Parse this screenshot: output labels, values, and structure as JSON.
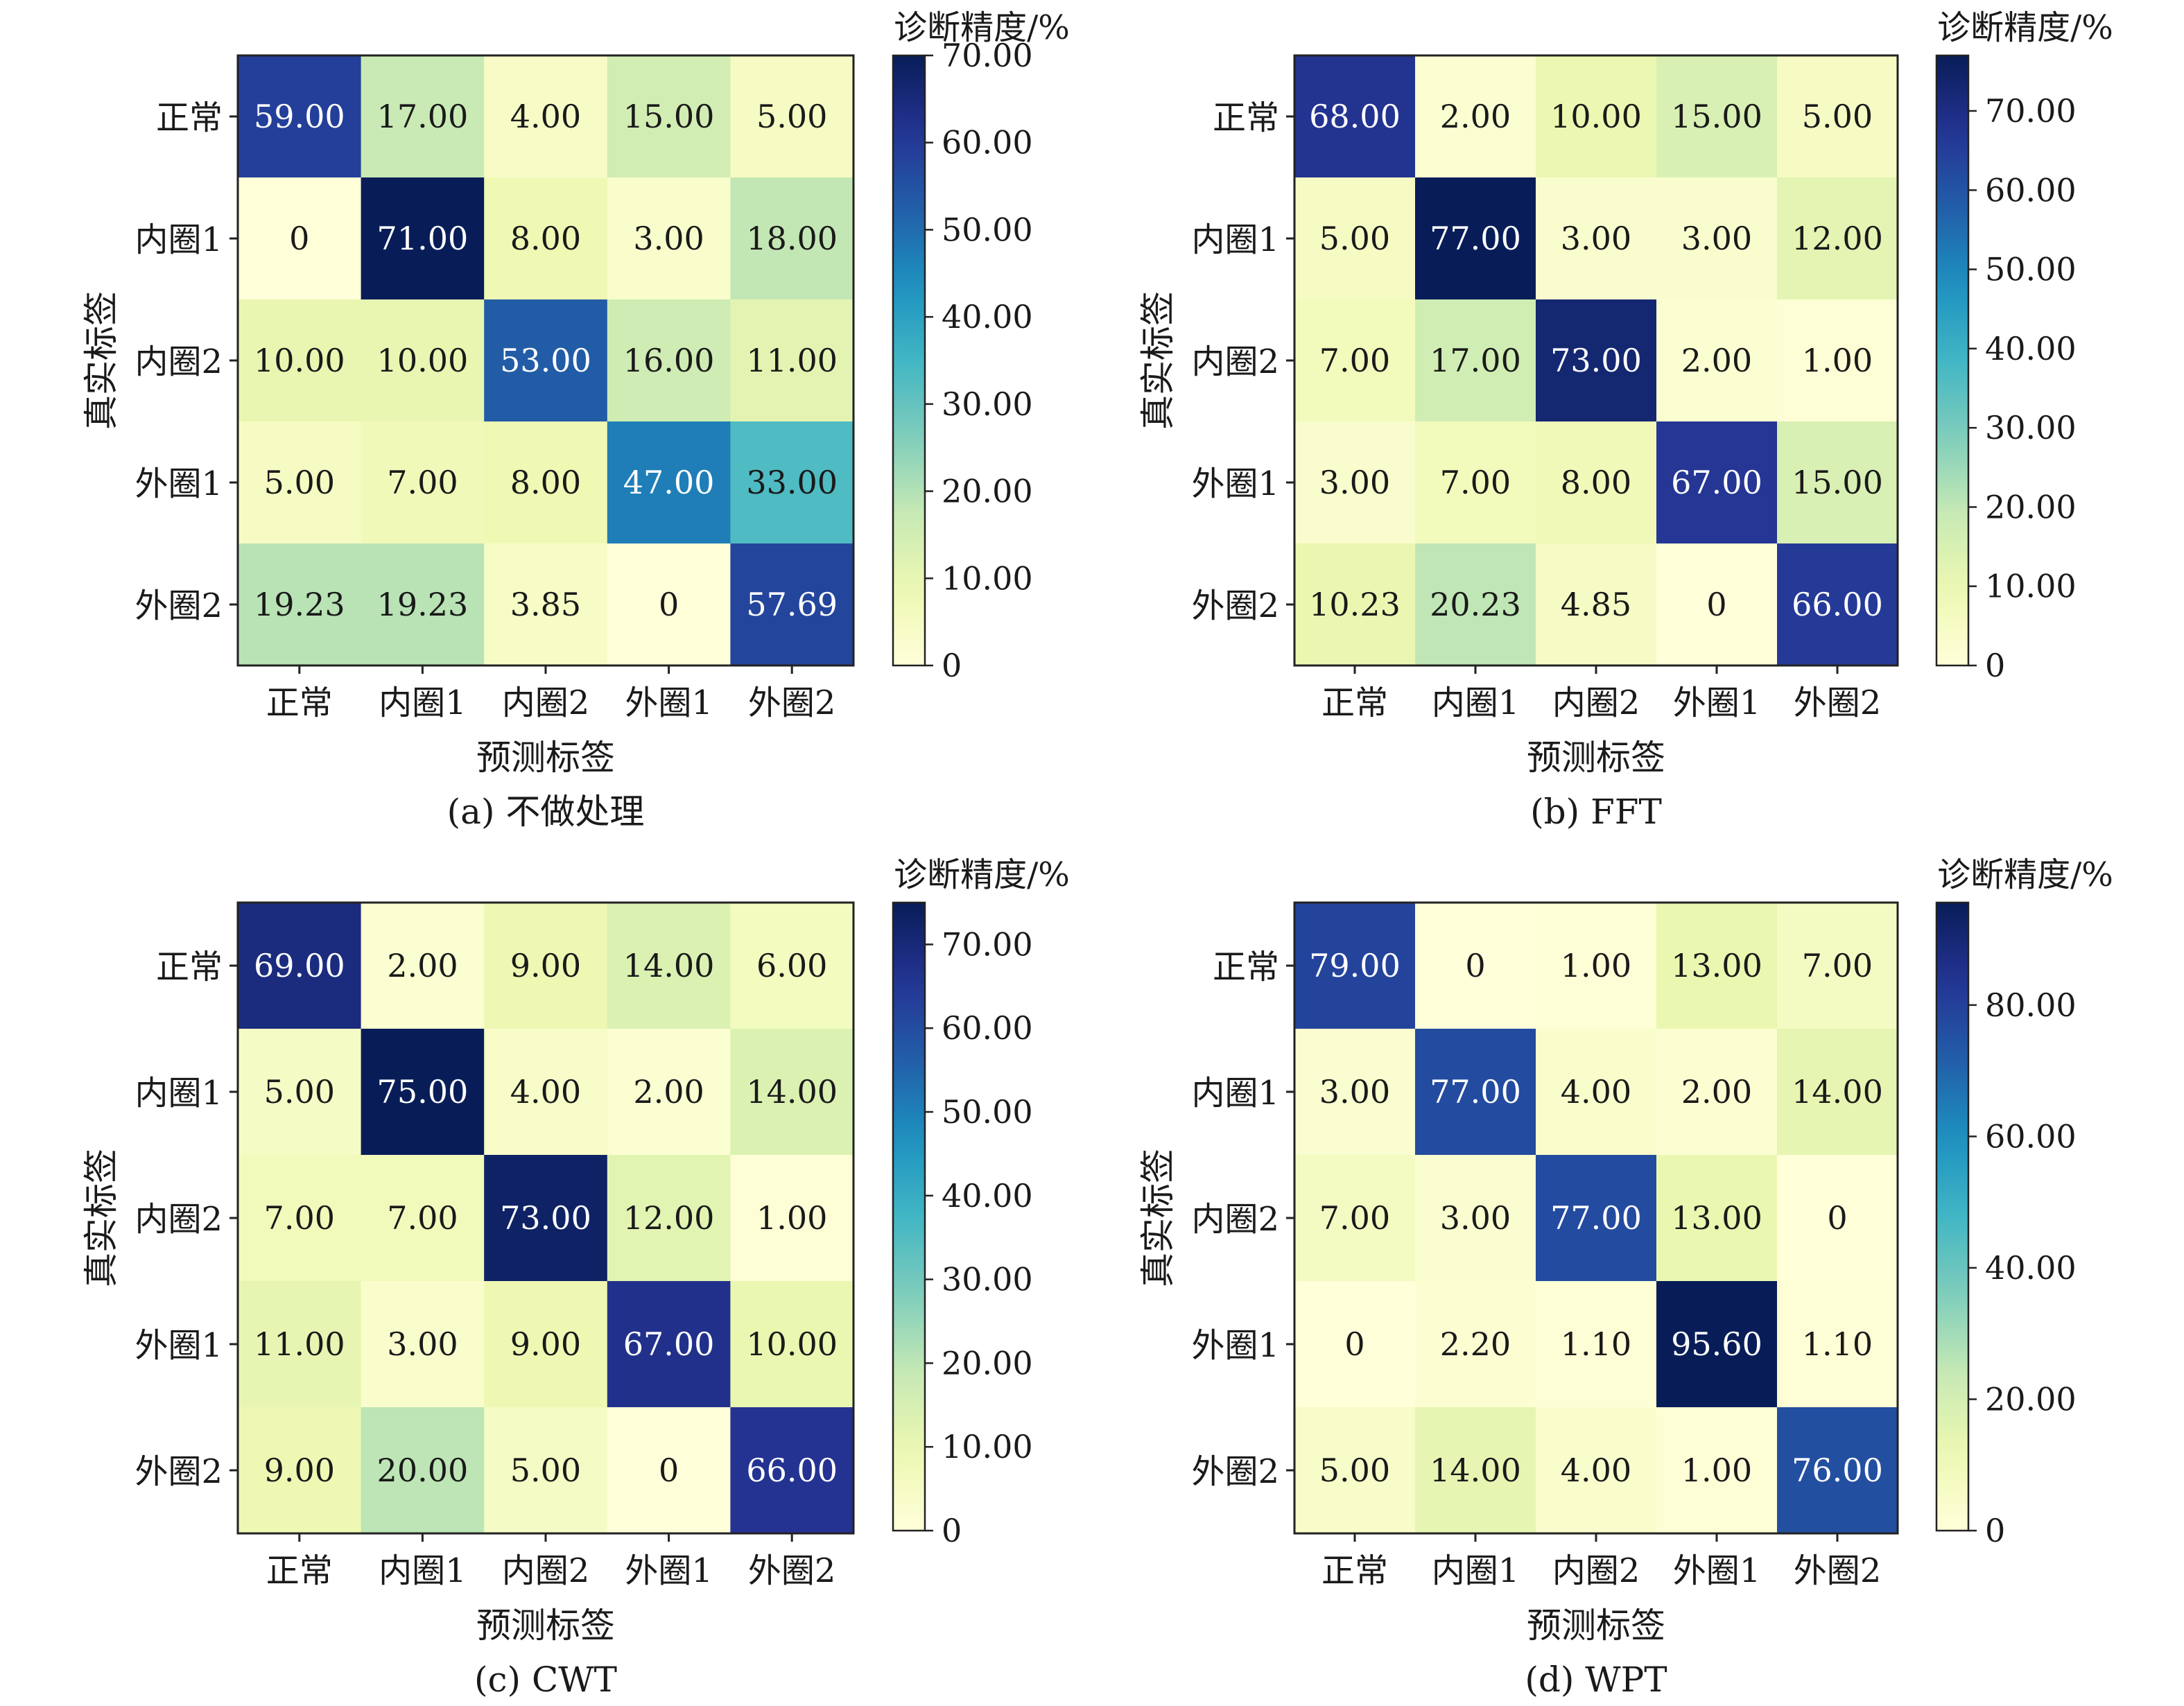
{
  "chart_data": [
    {
      "type": "heatmap",
      "title": "",
      "caption": "(a) 不做处理",
      "xlabel": "预测标签",
      "ylabel": "真实标签",
      "x_categories": [
        "正常",
        "内圈1",
        "内圈2",
        "外圈1",
        "外圈2"
      ],
      "y_categories": [
        "正常",
        "内圈1",
        "内圈2",
        "外圈1",
        "外圈2"
      ],
      "values": [
        [
          59.0,
          17.0,
          4.0,
          15.0,
          5.0
        ],
        [
          0,
          71.0,
          8.0,
          3.0,
          18.0
        ],
        [
          10.0,
          10.0,
          53.0,
          16.0,
          11.0
        ],
        [
          5.0,
          7.0,
          8.0,
          47.0,
          33.0
        ],
        [
          19.23,
          19.23,
          3.85,
          0,
          57.69
        ]
      ],
      "cell_labels": [
        [
          "59.00",
          "17.00",
          "4.00",
          "15.00",
          "5.00"
        ],
        [
          "0",
          "71.00",
          "8.00",
          "3.00",
          "18.00"
        ],
        [
          "10.00",
          "10.00",
          "53.00",
          "16.00",
          "11.00"
        ],
        [
          "5.00",
          "7.00",
          "8.00",
          "47.00",
          "33.00"
        ],
        [
          "19.23",
          "19.23",
          "3.85",
          "0",
          "57.69"
        ]
      ],
      "colorbar": {
        "label": "诊断精度/%",
        "vmin": 0,
        "vmax": 70,
        "ticks": [
          0,
          10,
          20,
          30,
          40,
          50,
          60,
          70
        ],
        "tick_labels": [
          "0",
          "10.00",
          "20.00",
          "30.00",
          "40.00",
          "50.00",
          "60.00",
          "70.00"
        ]
      },
      "colormap": "YlGnBu"
    },
    {
      "type": "heatmap",
      "title": "",
      "caption": "(b) FFT",
      "xlabel": "预测标签",
      "ylabel": "真实标签",
      "x_categories": [
        "正常",
        "内圈1",
        "内圈2",
        "外圈1",
        "外圈2"
      ],
      "y_categories": [
        "正常",
        "内圈1",
        "内圈2",
        "外圈1",
        "外圈2"
      ],
      "values": [
        [
          68.0,
          2.0,
          10.0,
          15.0,
          5.0
        ],
        [
          5.0,
          77.0,
          3.0,
          3.0,
          12.0
        ],
        [
          7.0,
          17.0,
          73.0,
          2.0,
          1.0
        ],
        [
          3.0,
          7.0,
          8.0,
          67.0,
          15.0
        ],
        [
          10.23,
          20.23,
          4.85,
          0,
          66.0
        ]
      ],
      "cell_labels": [
        [
          "68.00",
          "2.00",
          "10.00",
          "15.00",
          "5.00"
        ],
        [
          "5.00",
          "77.00",
          "3.00",
          "3.00",
          "12.00"
        ],
        [
          "7.00",
          "17.00",
          "73.00",
          "2.00",
          "1.00"
        ],
        [
          "3.00",
          "7.00",
          "8.00",
          "67.00",
          "15.00"
        ],
        [
          "10.23",
          "20.23",
          "4.85",
          "0",
          "66.00"
        ]
      ],
      "colorbar": {
        "label": "诊断精度/%",
        "vmin": 0,
        "vmax": 77,
        "ticks": [
          0,
          10,
          20,
          30,
          40,
          50,
          60,
          70
        ],
        "tick_labels": [
          "0",
          "10.00",
          "20.00",
          "30.00",
          "40.00",
          "50.00",
          "60.00",
          "70.00"
        ]
      },
      "colormap": "YlGnBu"
    },
    {
      "type": "heatmap",
      "title": "",
      "caption": "(c) CWT",
      "xlabel": "预测标签",
      "ylabel": "真实标签",
      "x_categories": [
        "正常",
        "内圈1",
        "内圈2",
        "外圈1",
        "外圈2"
      ],
      "y_categories": [
        "正常",
        "内圈1",
        "内圈2",
        "外圈1",
        "外圈2"
      ],
      "values": [
        [
          69.0,
          2.0,
          9.0,
          14.0,
          6.0
        ],
        [
          5.0,
          75.0,
          4.0,
          2.0,
          14.0
        ],
        [
          7.0,
          7.0,
          73.0,
          12.0,
          1.0
        ],
        [
          11.0,
          3.0,
          9.0,
          67.0,
          10.0
        ],
        [
          9.0,
          20.0,
          5.0,
          0,
          66.0
        ]
      ],
      "cell_labels": [
        [
          "69.00",
          "2.00",
          "9.00",
          "14.00",
          "6.00"
        ],
        [
          "5.00",
          "75.00",
          "4.00",
          "2.00",
          "14.00"
        ],
        [
          "7.00",
          "7.00",
          "73.00",
          "12.00",
          "1.00"
        ],
        [
          "11.00",
          "3.00",
          "9.00",
          "67.00",
          "10.00"
        ],
        [
          "9.00",
          "20.00",
          "5.00",
          "0",
          "66.00"
        ]
      ],
      "colorbar": {
        "label": "诊断精度/%",
        "vmin": 0,
        "vmax": 75,
        "ticks": [
          0,
          10,
          20,
          30,
          40,
          50,
          60,
          70
        ],
        "tick_labels": [
          "0",
          "10.00",
          "20.00",
          "30.00",
          "40.00",
          "50.00",
          "60.00",
          "70.00"
        ]
      },
      "colormap": "YlGnBu"
    },
    {
      "type": "heatmap",
      "title": "",
      "caption": "(d) WPT",
      "xlabel": "预测标签",
      "ylabel": "真实标签",
      "x_categories": [
        "正常",
        "内圈1",
        "内圈2",
        "外圈1",
        "外圈2"
      ],
      "y_categories": [
        "正常",
        "内圈1",
        "内圈2",
        "外圈1",
        "外圈2"
      ],
      "values": [
        [
          79.0,
          0,
          1.0,
          13.0,
          7.0
        ],
        [
          3.0,
          77.0,
          4.0,
          2.0,
          14.0
        ],
        [
          7.0,
          3.0,
          77.0,
          13.0,
          0
        ],
        [
          0,
          2.2,
          1.1,
          95.6,
          1.1
        ],
        [
          5.0,
          14.0,
          4.0,
          1.0,
          76.0
        ]
      ],
      "cell_labels": [
        [
          "79.00",
          "0",
          "1.00",
          "13.00",
          "7.00"
        ],
        [
          "3.00",
          "77.00",
          "4.00",
          "2.00",
          "14.00"
        ],
        [
          "7.00",
          "3.00",
          "77.00",
          "13.00",
          "0"
        ],
        [
          "0",
          "2.20",
          "1.10",
          "95.60",
          "1.10"
        ],
        [
          "5.00",
          "14.00",
          "4.00",
          "1.00",
          "76.00"
        ]
      ],
      "colorbar": {
        "label": "诊断精度/%",
        "vmin": 0,
        "vmax": 95.6,
        "ticks": [
          0,
          20,
          40,
          60,
          80
        ],
        "tick_labels": [
          "0",
          "20.00",
          "40.00",
          "60.00",
          "80.00"
        ]
      },
      "colormap": "YlGnBu"
    }
  ]
}
